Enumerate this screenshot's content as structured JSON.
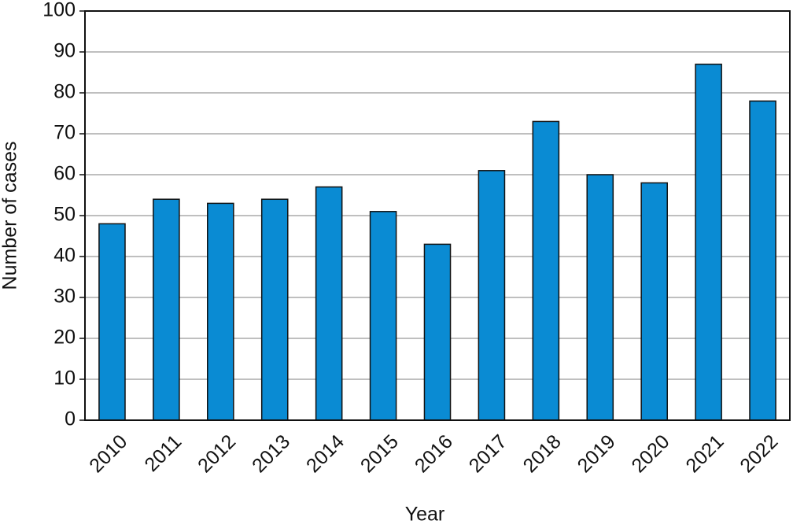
{
  "chart_data": {
    "type": "bar",
    "x_label": "Year",
    "y_label": "Number of cases",
    "categories": [
      "2010",
      "2011",
      "2012",
      "2013",
      "2014",
      "2015",
      "2016",
      "2017",
      "2018",
      "2019",
      "2020",
      "2021",
      "2022"
    ],
    "values": [
      48,
      54,
      53,
      54,
      57,
      51,
      43,
      61,
      73,
      60,
      58,
      87,
      78
    ],
    "color": "#0a8bd3",
    "ylim": [
      0,
      100
    ],
    "yticks": [
      0,
      10,
      20,
      30,
      40,
      50,
      60,
      70,
      80,
      90,
      100
    ],
    "grid": true
  }
}
